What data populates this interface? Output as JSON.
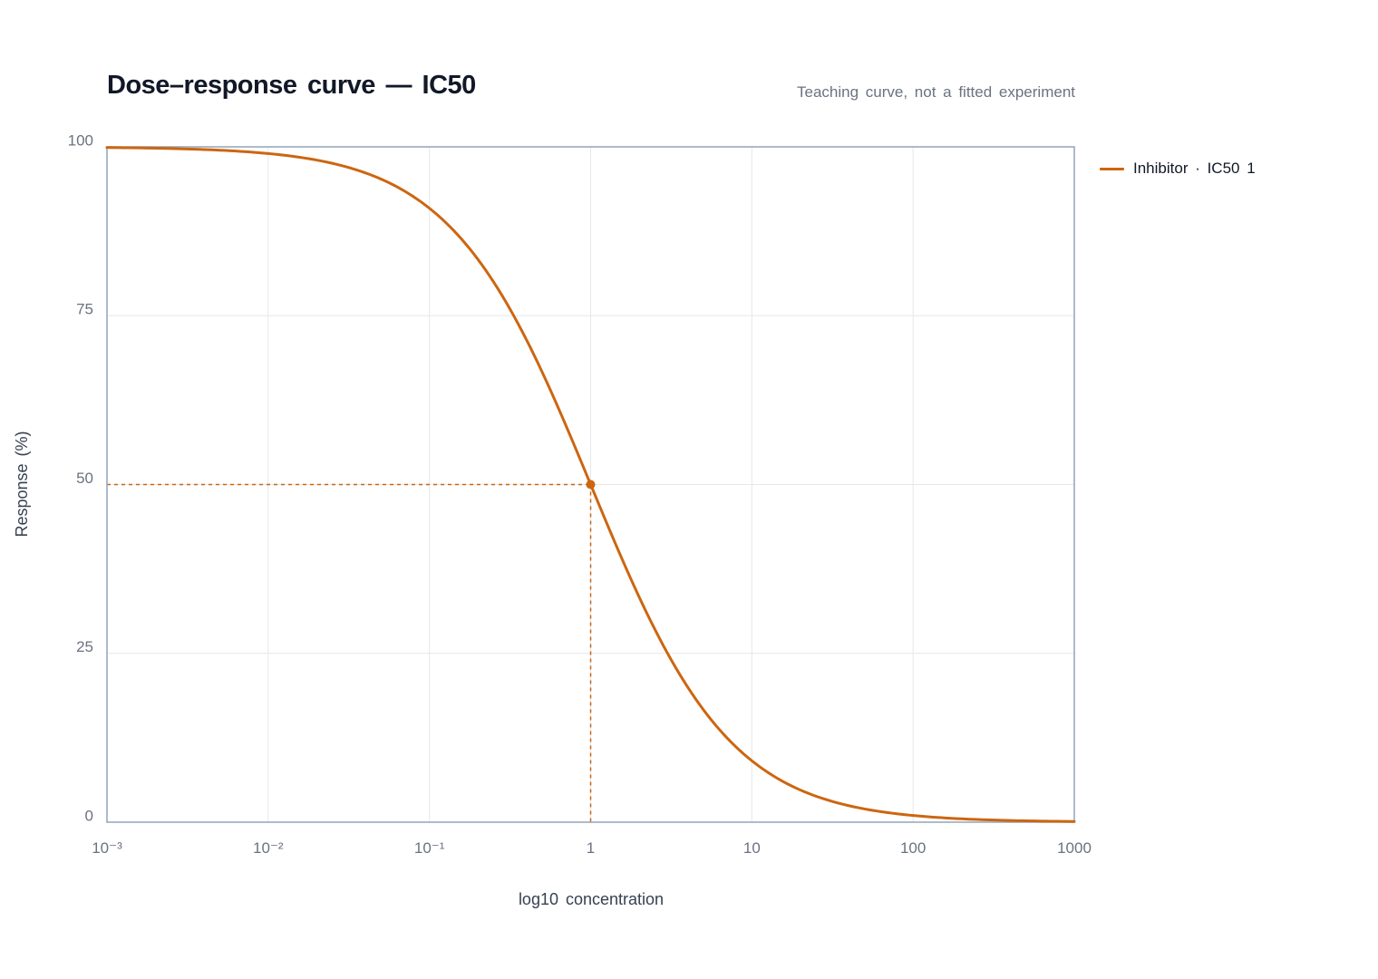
{
  "chart_data": {
    "type": "line",
    "title": "Dose–response curve — IC50",
    "subtitle": "Teaching curve, not a fitted experiment",
    "xlabel": "log10 concentration",
    "ylabel": "Response (%)",
    "x_scale": "log",
    "xlim": [
      0.001,
      1000
    ],
    "ylim": [
      0,
      100
    ],
    "x_ticks": [
      0.001,
      0.01,
      0.1,
      1,
      10,
      100,
      1000
    ],
    "x_tick_labels": [
      "10⁻³",
      "10⁻²",
      "10⁻¹",
      "1",
      "10",
      "100",
      "1000"
    ],
    "y_ticks": [
      0,
      25,
      50,
      75,
      100
    ],
    "y_tick_labels": [
      "0",
      "25",
      "50",
      "75",
      "100"
    ],
    "grid": true,
    "legend_position": "right",
    "series": [
      {
        "name": "Inhibitor · IC50 1",
        "color": "#cc6611",
        "x": [
          0.001,
          0.003,
          0.01,
          0.03,
          0.1,
          0.2,
          0.3,
          0.5,
          0.7,
          1,
          1.5,
          2,
          3,
          5,
          10,
          30,
          100,
          300,
          1000
        ],
        "y": [
          99.8,
          99.4,
          98.8,
          96.1,
          90.9,
          83.3,
          76.9,
          66.7,
          58.8,
          50.0,
          40.0,
          33.3,
          25.0,
          16.7,
          9.1,
          3.2,
          1.0,
          0.3,
          0.1
        ]
      }
    ],
    "annotations": [
      {
        "type": "marker",
        "x": 1,
        "y": 50
      },
      {
        "type": "guide-lines",
        "x": 1,
        "y": 50,
        "style": "dashed"
      }
    ]
  }
}
